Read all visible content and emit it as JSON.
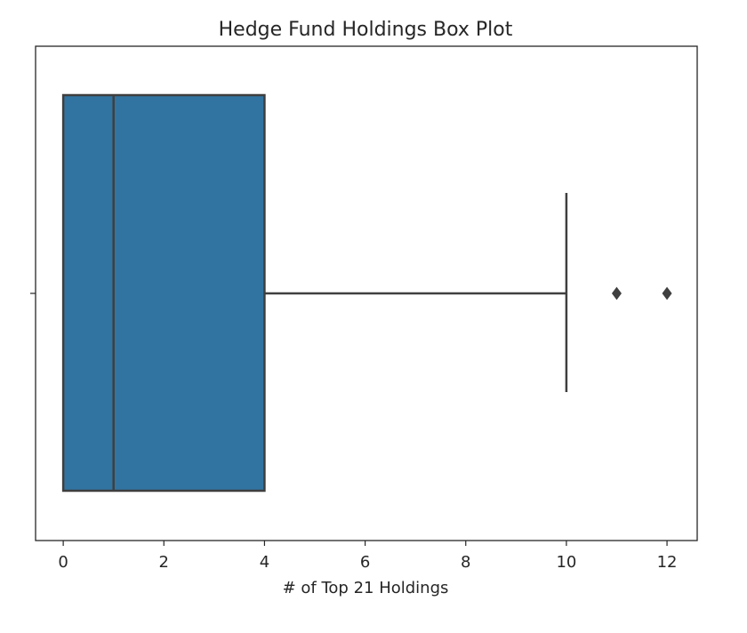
{
  "chart_data": {
    "type": "box",
    "title": "Hedge Fund Holdings Box Plot",
    "xlabel": "# of Top 21 Holdings",
    "ylabel": "",
    "orientation": "horizontal",
    "xlim": [
      -0.55,
      12.6
    ],
    "xticks": [
      0,
      2,
      4,
      6,
      8,
      10,
      12
    ],
    "grid": false,
    "box": {
      "min_whisker": 0,
      "q1": 0,
      "median": 1,
      "q3": 4,
      "max_whisker": 10,
      "outliers": [
        11,
        12
      ]
    },
    "colors": {
      "box_fill": "#3274a1",
      "line": "#3f3f3f",
      "frame": "#262626"
    }
  }
}
